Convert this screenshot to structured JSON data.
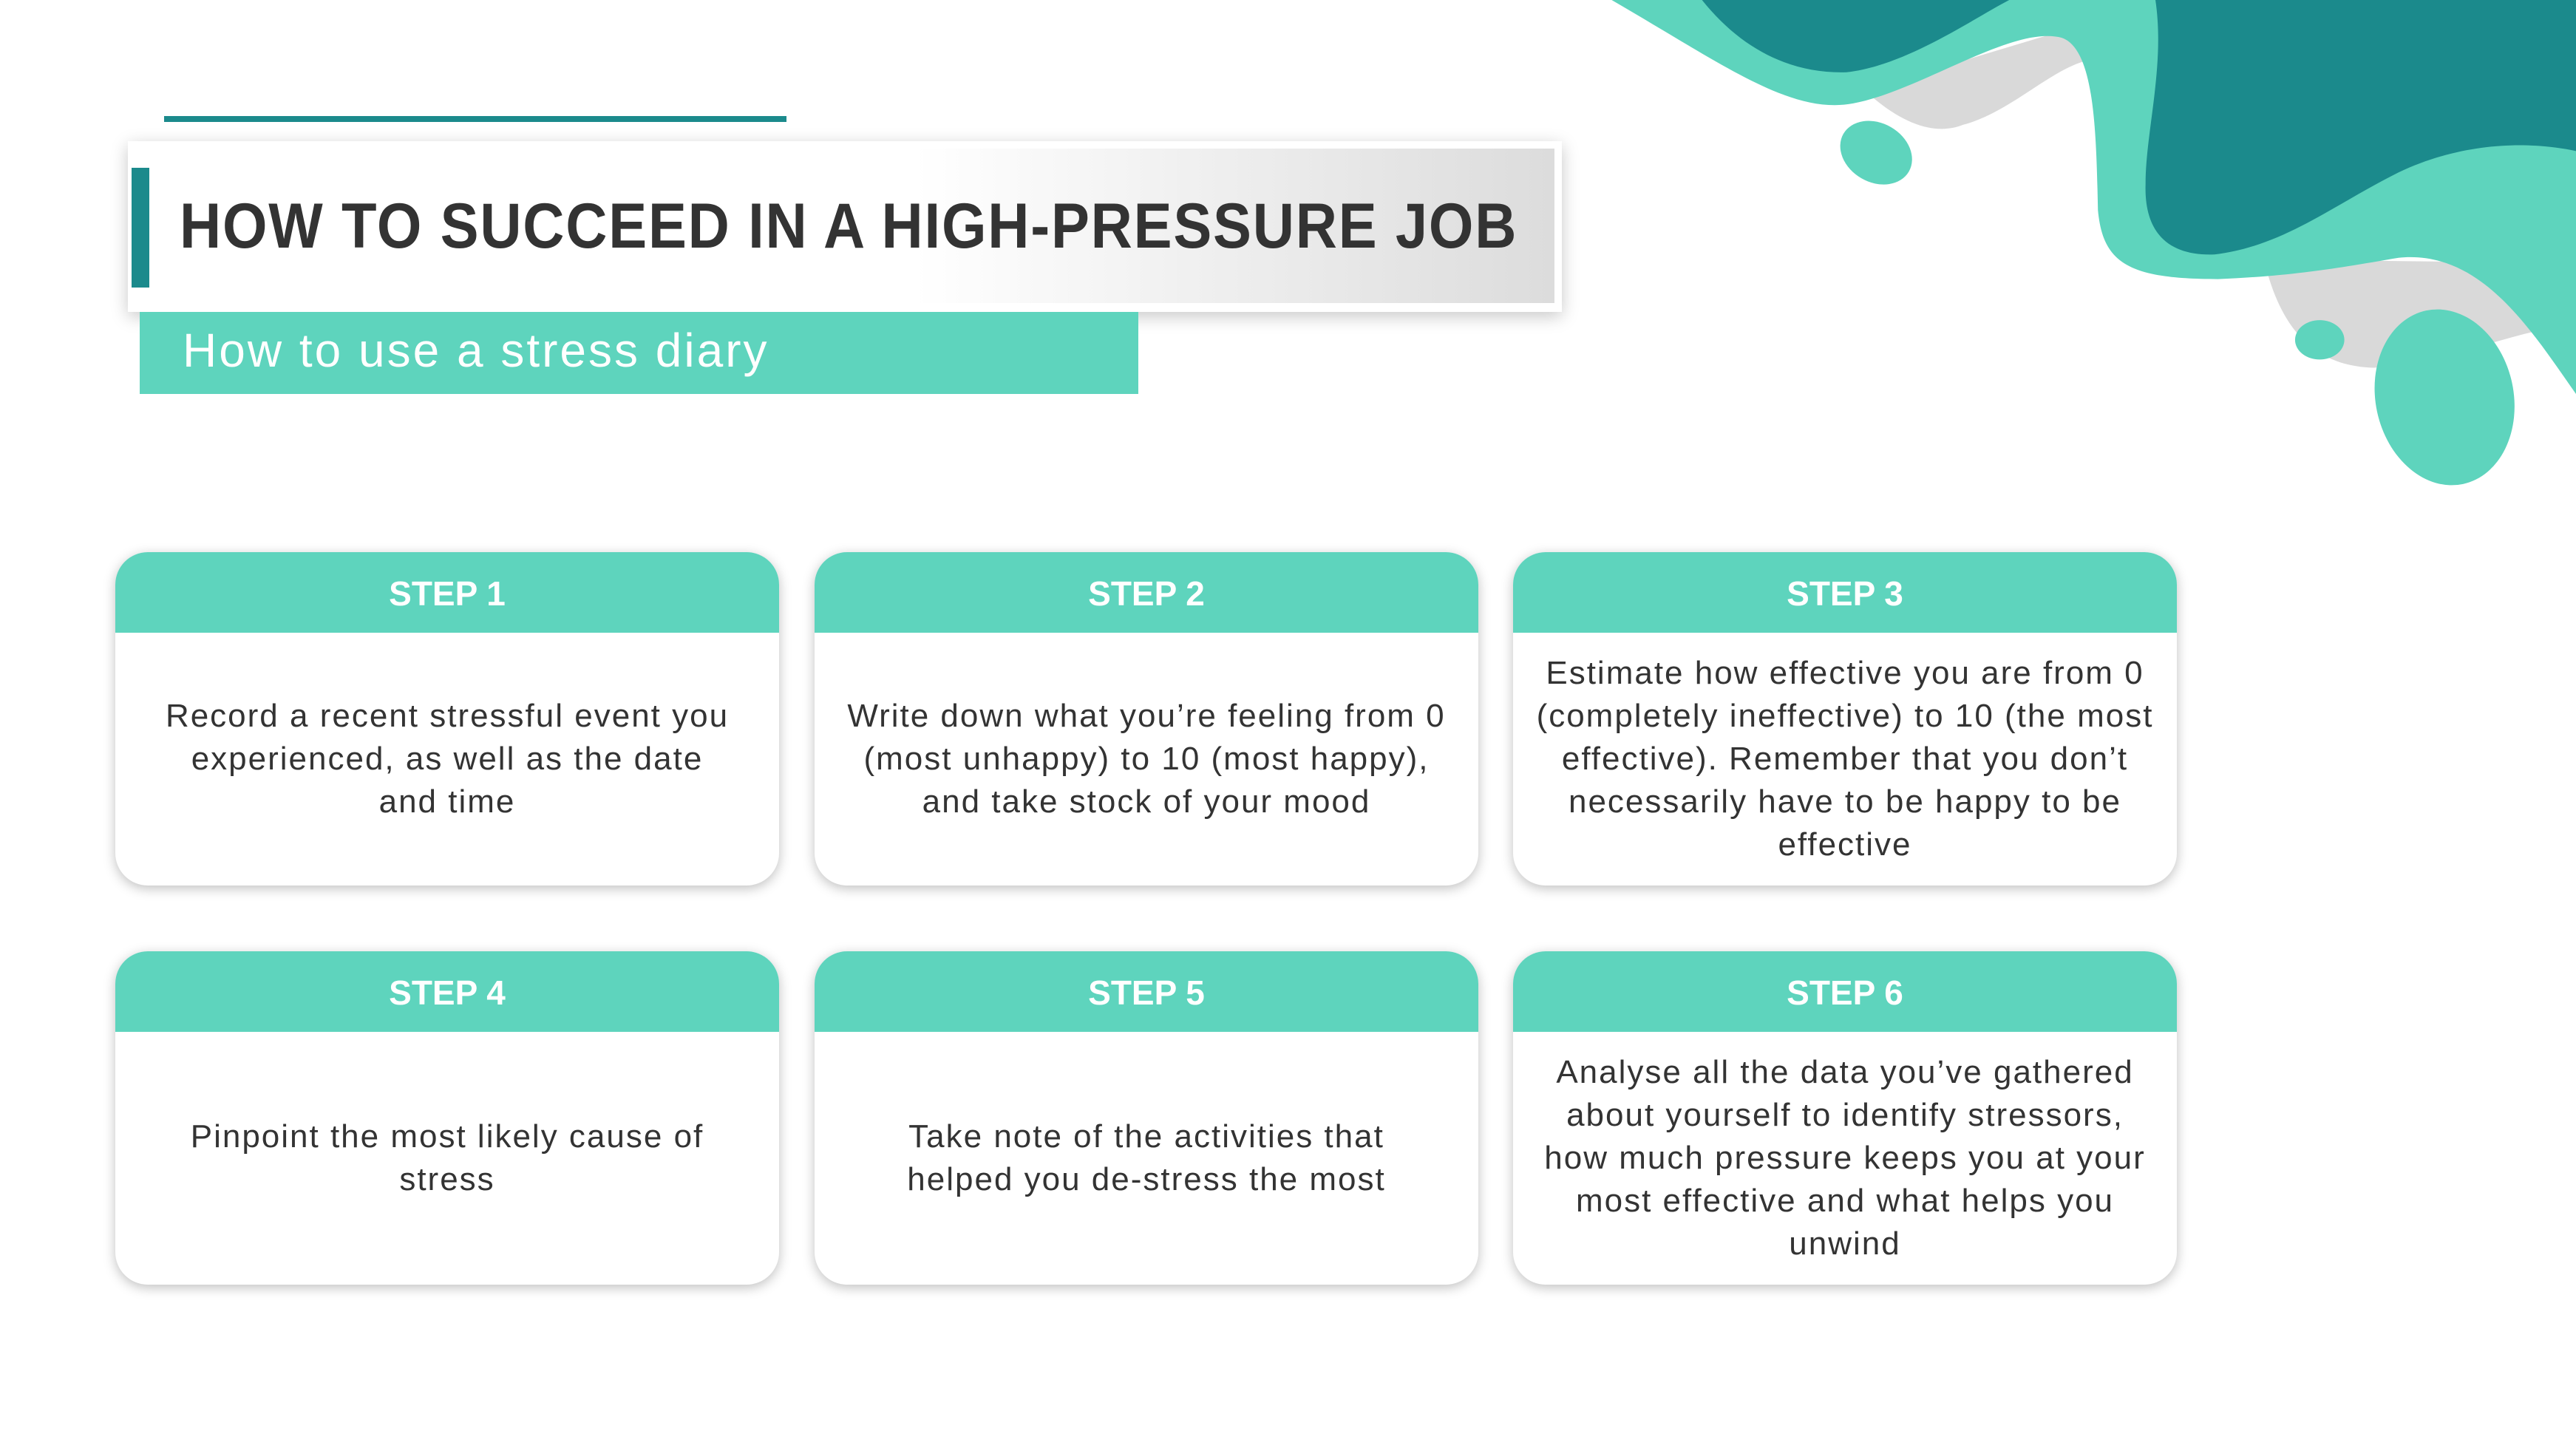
{
  "colors": {
    "accent_light": "#5ed4bd",
    "accent_dark": "#1b8a8c",
    "decor_gray": "#d9d9d9",
    "text": "#333333"
  },
  "header": {
    "title": "HOW TO SUCCEED IN A HIGH-PRESSURE JOB",
    "subtitle": "How to use a stress diary"
  },
  "steps": [
    {
      "label": "STEP 1",
      "text": "Record a recent stressful event you experienced, as well as the date and time"
    },
    {
      "label": "STEP 2",
      "text": "Write down what you’re feeling from 0 (most unhappy) to 10 (most happy), and take stock of your mood"
    },
    {
      "label": "STEP 3",
      "text": "Estimate how effective you are from 0 (completely ineffective) to 10 (the most effective). Remember that you don’t necessarily have to be happy to be effective"
    },
    {
      "label": "STEP 4",
      "text": "Pinpoint the most likely cause of stress"
    },
    {
      "label": "STEP 5",
      "text": "Take note of the activities that helped you de-stress the most"
    },
    {
      "label": "STEP 6",
      "text": "Analyse all the data you’ve gathered about yourself to identify stressors, how much pressure keeps you at your most effective and what helps you unwind"
    }
  ]
}
